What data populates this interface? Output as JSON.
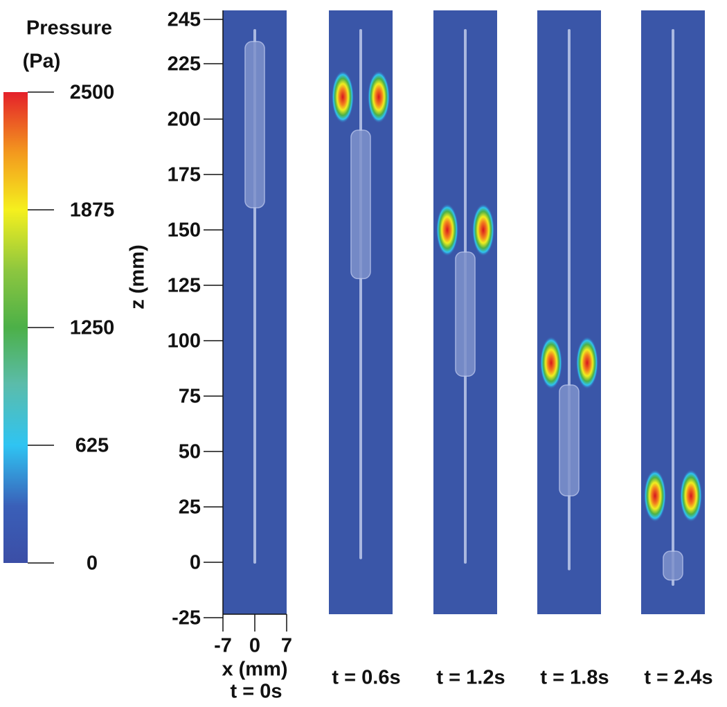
{
  "chart_data": {
    "type": "panels",
    "colorbar_title": [
      "Pressure",
      "(Pa)"
    ],
    "colorbar_lim": [
      0,
      2500
    ],
    "colorbar_ticks": [
      0,
      625,
      1250,
      1875,
      2500
    ],
    "ylabel": "z (mm)",
    "ylim": [
      -25,
      245
    ],
    "yticks": [
      -25,
      0,
      25,
      50,
      75,
      100,
      125,
      150,
      175,
      200,
      225,
      245
    ],
    "xlabel": "x (mm)",
    "xlim": [
      -7,
      7
    ],
    "xticks": [
      -7,
      0,
      7
    ],
    "panels": [
      {
        "label": "t = 0s",
        "hotspot_z": null,
        "tube_z": [
          0,
          240
        ],
        "bulb_z": [
          160,
          235
        ]
      },
      {
        "label": "t = 0.6s",
        "hotspot_z": 210,
        "tube_z": [
          2,
          240
        ],
        "bulb_z": [
          128,
          195
        ]
      },
      {
        "label": "t = 1.2s",
        "hotspot_z": 150,
        "tube_z": [
          0,
          240
        ],
        "bulb_z": [
          84,
          140
        ]
      },
      {
        "label": "t = 1.8s",
        "hotspot_z": 90,
        "tube_z": [
          -3,
          240
        ],
        "bulb_z": [
          30,
          80
        ]
      },
      {
        "label": "t = 2.4s",
        "hotspot_z": 30,
        "tube_z": [
          -10,
          240
        ],
        "bulb_z": [
          -8,
          5
        ]
      }
    ]
  }
}
